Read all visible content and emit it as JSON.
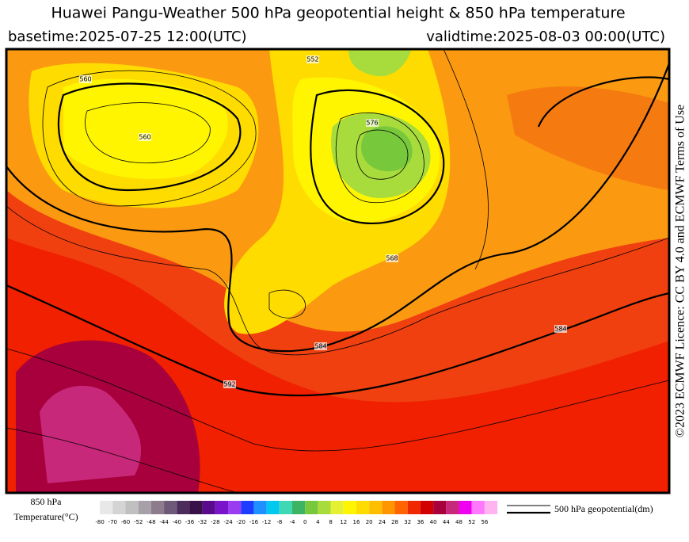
{
  "header": {
    "title": "Huawei Pangu-Weather 500 hPa geopotential height & 850 hPa temperature",
    "basetime": "basetime:2025-07-25 12:00(UTC)",
    "validtime": "validtime:2025-08-03 00:00(UTC)"
  },
  "credit": "©2023 ECMWF Licence: CC BY 4.0 and ECMWF Terms of Use",
  "map": {
    "contour_labels": [
      "560",
      "568",
      "576",
      "584",
      "592",
      "552",
      "584",
      "560"
    ]
  },
  "legend": {
    "title_line1": "850 hPa",
    "title_line2": "Temperature(°C)",
    "ticks": [
      -80,
      -70,
      -60,
      -52,
      -48,
      -44,
      -40,
      -36,
      -32,
      -28,
      -24,
      -20,
      -16,
      -12,
      -8,
      -4,
      0,
      4,
      8,
      12,
      16,
      20,
      24,
      28,
      32,
      36,
      40,
      44,
      48,
      52,
      56
    ],
    "colors": [
      "#e8e8e8",
      "#d4d4d4",
      "#c0c0c0",
      "#a8a0a8",
      "#8c7c8c",
      "#6e5a78",
      "#4c2c5c",
      "#3a1048",
      "#5a0a8c",
      "#7a14c8",
      "#9a3cf0",
      "#1e3cff",
      "#1e90ff",
      "#00c8f0",
      "#40d8b4",
      "#3cb464",
      "#78c83c",
      "#a8dc3c",
      "#e6f032",
      "#fff500",
      "#ffdc00",
      "#ffbe00",
      "#ff9600",
      "#ff6400",
      "#f02800",
      "#d20000",
      "#a8003c",
      "#c8287a",
      "#f000f0",
      "#ff78ff",
      "#ffb4f0"
    ],
    "line_label": "500 hPa geopotential(dm)"
  }
}
